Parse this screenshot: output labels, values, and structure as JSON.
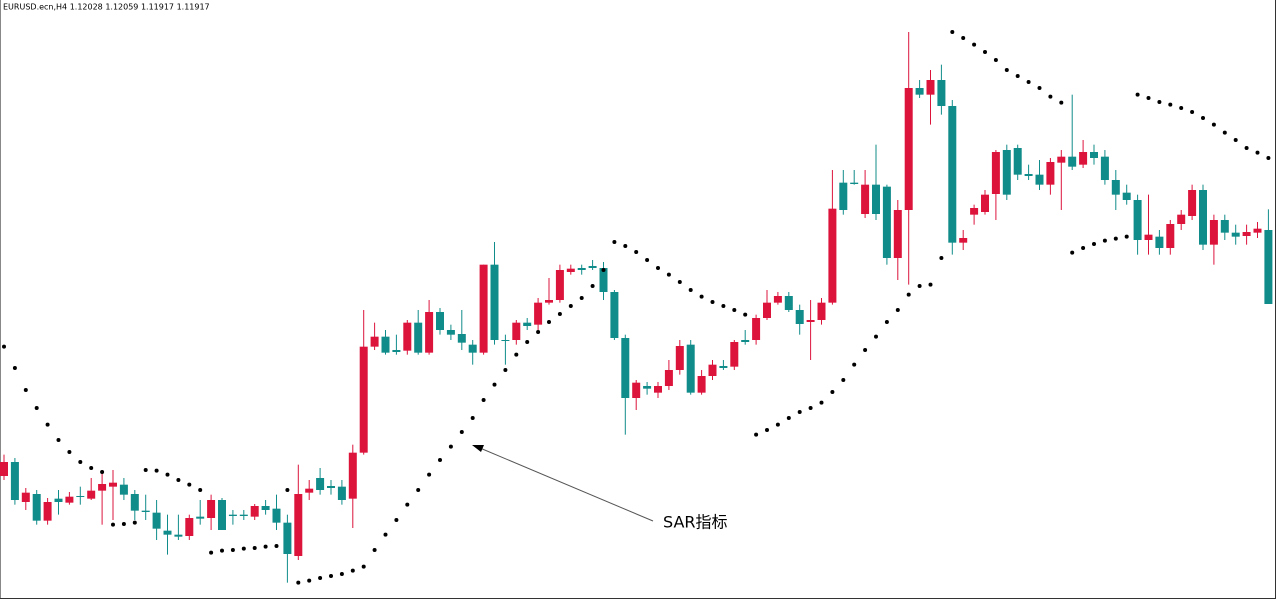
{
  "chart_data": {
    "type": "candlestick",
    "header": "EURUSD.ecn,H4  1.12028 1.12059 1.11917 1.11917",
    "annotation": "SAR指标",
    "up_color": "#dc143c",
    "down_color": "#108c8a",
    "sar_color": "#000000",
    "ylim": [
      1.11476,
      1.12358
    ],
    "open": [
      1.11659,
      1.1168,
      1.1162,
      1.11632,
      1.11592,
      1.11625,
      1.11619,
      1.11629,
      1.11625,
      1.11637,
      1.11643,
      1.11646,
      1.11632,
      1.11607,
      1.11604,
      1.11577,
      1.11571,
      1.11569,
      1.11598,
      1.11596,
      1.11623,
      1.11601,
      1.11601,
      1.11598,
      1.11614,
      1.1161,
      1.11589,
      1.11539,
      1.11634,
      1.11656,
      1.11644,
      1.11643,
      1.11625,
      1.11694,
      1.11853,
      1.11868,
      1.11848,
      1.11847,
      1.11889,
      1.11844,
      1.11905,
      1.11878,
      1.11872,
      1.11856,
      1.11844,
      1.11976,
      1.11863,
      1.11863,
      1.11889,
      1.11886,
      1.11919,
      1.11923,
      1.11965,
      1.11971,
      1.11974,
      1.11971,
      1.11935,
      1.11866,
      1.11776,
      1.11794,
      1.11784,
      1.11794,
      1.11818,
      1.11856,
      1.11784,
      1.11809,
      1.11824,
      1.11823,
      1.11863,
      1.11863,
      1.11896,
      1.11919,
      1.11929,
      1.11908,
      1.1189,
      1.11893,
      1.11919,
      1.12099,
      1.12099,
      1.12052,
      1.12096,
      1.12093,
      1.11986,
      1.12058,
      1.12241,
      1.12231,
      1.12253,
      1.12214,
      1.12009,
      1.12051,
      1.12055,
      1.12082,
      1.12148,
      1.12151,
      1.12112,
      1.12111,
      1.12096,
      1.12129,
      1.12138,
      1.12126,
      1.12145,
      1.12138,
      1.12103,
      1.12084,
      1.12073,
      1.12013,
      1.12018,
      1.12001,
      1.12037,
      1.12049,
      1.12088,
      1.12006,
      1.12043,
      1.12024,
      1.12019,
      1.12024,
      1.12028
    ],
    "high": [
      1.11691,
      1.11686,
      1.11641,
      1.11638,
      1.11626,
      1.11638,
      1.11635,
      1.11643,
      1.11656,
      1.11668,
      1.11668,
      1.11656,
      1.11638,
      1.11631,
      1.11623,
      1.11601,
      1.11601,
      1.11601,
      1.11623,
      1.11631,
      1.11626,
      1.11608,
      1.11608,
      1.11617,
      1.11623,
      1.11631,
      1.11601,
      1.11676,
      1.11653,
      1.11671,
      1.11653,
      1.11653,
      1.11706,
      1.11908,
      1.11889,
      1.11878,
      1.11871,
      1.11893,
      1.11908,
      1.11923,
      1.11911,
      1.11886,
      1.11908,
      1.11863,
      1.11976,
      1.1201,
      1.11871,
      1.11893,
      1.11896,
      1.11926,
      1.11956,
      1.11976,
      1.11976,
      1.11976,
      1.11983,
      1.1198,
      1.11938,
      1.11871,
      1.11803,
      1.118,
      1.118,
      1.11833,
      1.11863,
      1.11863,
      1.11818,
      1.11833,
      1.11833,
      1.11863,
      1.11878,
      1.11901,
      1.11938,
      1.11935,
      1.11935,
      1.11916,
      1.11923,
      1.11926,
      1.12118,
      1.12118,
      1.12118,
      1.12118,
      1.12156,
      1.12096,
      1.12073,
      1.12325,
      1.12253,
      1.12268,
      1.12276,
      1.12223,
      1.12028,
      1.12066,
      1.12088,
      1.12148,
      1.12156,
      1.12156,
      1.12126,
      1.12133,
      1.12136,
      1.12148,
      1.12231,
      1.12163,
      1.12156,
      1.12148,
      1.12118,
      1.12096,
      1.12081,
      1.12081,
      1.12028,
      1.12043,
      1.12058,
      1.12096,
      1.12096,
      1.12051,
      1.12051,
      1.12036,
      1.12036,
      1.1204,
      1.12059
    ],
    "low": [
      1.11653,
      1.11616,
      1.11608,
      1.11586,
      1.11586,
      1.11601,
      1.11616,
      1.11616,
      1.11623,
      1.11586,
      1.11593,
      1.11623,
      1.11593,
      1.11593,
      1.11563,
      1.11541,
      1.11563,
      1.11563,
      1.11586,
      1.11578,
      1.11578,
      1.11586,
      1.11593,
      1.11593,
      1.11601,
      1.11578,
      1.11499,
      1.11533,
      1.11623,
      1.11631,
      1.11631,
      1.11616,
      1.11581,
      1.11691,
      1.11848,
      1.11841,
      1.11841,
      1.11841,
      1.11841,
      1.11841,
      1.11871,
      1.11863,
      1.11848,
      1.11826,
      1.11841,
      1.11856,
      1.11826,
      1.11856,
      1.11878,
      1.11878,
      1.11916,
      1.11919,
      1.11961,
      1.11961,
      1.11968,
      1.11923,
      1.11863,
      1.11721,
      1.11758,
      1.11781,
      1.11776,
      1.11788,
      1.11811,
      1.11781,
      1.11781,
      1.11803,
      1.11818,
      1.11818,
      1.11856,
      1.11856,
      1.11893,
      1.11916,
      1.11905,
      1.11871,
      1.11833,
      1.11886,
      1.11916,
      1.12051,
      1.12096,
      1.12046,
      1.12043,
      1.11976,
      1.11953,
      1.11946,
      1.12226,
      1.12186,
      1.12201,
      1.11991,
      1.11998,
      1.12036,
      1.12051,
      1.12043,
      1.12073,
      1.12103,
      1.12103,
      1.12088,
      1.12081,
      1.12058,
      1.12118,
      1.12121,
      1.12126,
      1.12096,
      1.12058,
      1.12066,
      1.11991,
      1.11991,
      1.11991,
      1.11991,
      1.12028,
      1.12043,
      1.11998,
      1.11976,
      1.12013,
      1.12006,
      1.12006,
      1.12016,
      1.11917
    ],
    "close": [
      1.1168,
      1.11623,
      1.11634,
      1.11592,
      1.1162,
      1.1162,
      1.11628,
      1.11628,
      1.11637,
      1.11647,
      1.11649,
      1.11631,
      1.11607,
      1.11605,
      1.1158,
      1.11571,
      1.11568,
      1.11596,
      1.11595,
      1.11623,
      1.11578,
      1.11599,
      1.11599,
      1.11614,
      1.11608,
      1.11589,
      1.11542,
      1.11632,
      1.1164,
      1.11638,
      1.11641,
      1.11623,
      1.11694,
      1.11853,
      1.11868,
      1.11844,
      1.11845,
      1.11889,
      1.11844,
      1.11905,
      1.11878,
      1.11871,
      1.11859,
      1.11844,
      1.11976,
      1.11863,
      1.11862,
      1.11889,
      1.11884,
      1.11919,
      1.11923,
      1.11968,
      1.1197,
      1.11968,
      1.11971,
      1.11935,
      1.11866,
      1.11776,
      1.11799,
      1.1179,
      1.11794,
      1.11818,
      1.11854,
      1.11784,
      1.11809,
      1.11826,
      1.11821,
      1.1186,
      1.1186,
      1.11896,
      1.11919,
      1.11929,
      1.11908,
      1.11887,
      1.11893,
      1.11919,
      1.1206,
      1.12058,
      1.12097,
      1.12096,
      1.12052,
      1.11986,
      1.12058,
      1.12241,
      1.12231,
      1.12253,
      1.12214,
      1.12009,
      1.12016,
      1.12061,
      1.12081,
      1.12145,
      1.12081,
      1.12111,
      1.12109,
      1.12096,
      1.1213,
      1.12138,
      1.12123,
      1.12145,
      1.12136,
      1.12103,
      1.12081,
      1.12073,
      1.12013,
      1.12021,
      1.12001,
      1.12037,
      1.12051,
      1.12088,
      1.12006,
      1.12043,
      1.12024,
      1.12018,
      1.12025,
      1.1203,
      1.11917
    ],
    "sar": [
      1.11853,
      1.11821,
      1.11788,
      1.11761,
      1.11736,
      1.11713,
      1.11695,
      1.1168,
      1.11671,
      1.11665,
      1.11586,
      1.11587,
      1.11589,
      1.11668,
      1.11667,
      1.11661,
      1.11653,
      1.11646,
      1.11638,
      1.11544,
      1.11547,
      1.11548,
      1.1155,
      1.11551,
      1.11553,
      1.11554,
      1.11638,
      1.11499,
      1.11502,
      1.11506,
      1.11509,
      1.11512,
      1.11517,
      1.11523,
      1.11548,
      1.11571,
      1.11593,
      1.11616,
      1.11638,
      1.11661,
      1.11683,
      1.11703,
      1.11725,
      1.11746,
      1.11773,
      1.11796,
      1.11818,
      1.11841,
      1.1186,
      1.11875,
      1.1189,
      1.11902,
      1.11914,
      1.11926,
      1.11944,
      1.11968,
      1.1201,
      1.12004,
      1.11995,
      1.11983,
      1.11971,
      1.11961,
      1.1195,
      1.11938,
      1.11928,
      1.1192,
      1.11914,
      1.11908,
      1.11901,
      1.11721,
      1.11728,
      1.11736,
      1.11746,
      1.11755,
      1.11761,
      1.11769,
      1.11785,
      1.11803,
      1.11826,
      1.11848,
      1.11868,
      1.1189,
      1.11908,
      1.11931,
      1.11944,
      1.11946,
      1.11986,
      1.12325,
      1.12316,
      1.12306,
      1.12295,
      1.12283,
      1.12268,
      1.12259,
      1.1225,
      1.12241,
      1.12228,
      1.12219,
      1.11994,
      1.12001,
      1.12007,
      1.12012,
      1.12015,
      1.12018,
      1.12231,
      1.12226,
      1.1222,
      1.12216,
      1.12211,
      1.12205,
      1.12196,
      1.12186,
      1.12174,
      1.12163,
      1.12151,
      1.12144,
      1.12136
    ]
  }
}
